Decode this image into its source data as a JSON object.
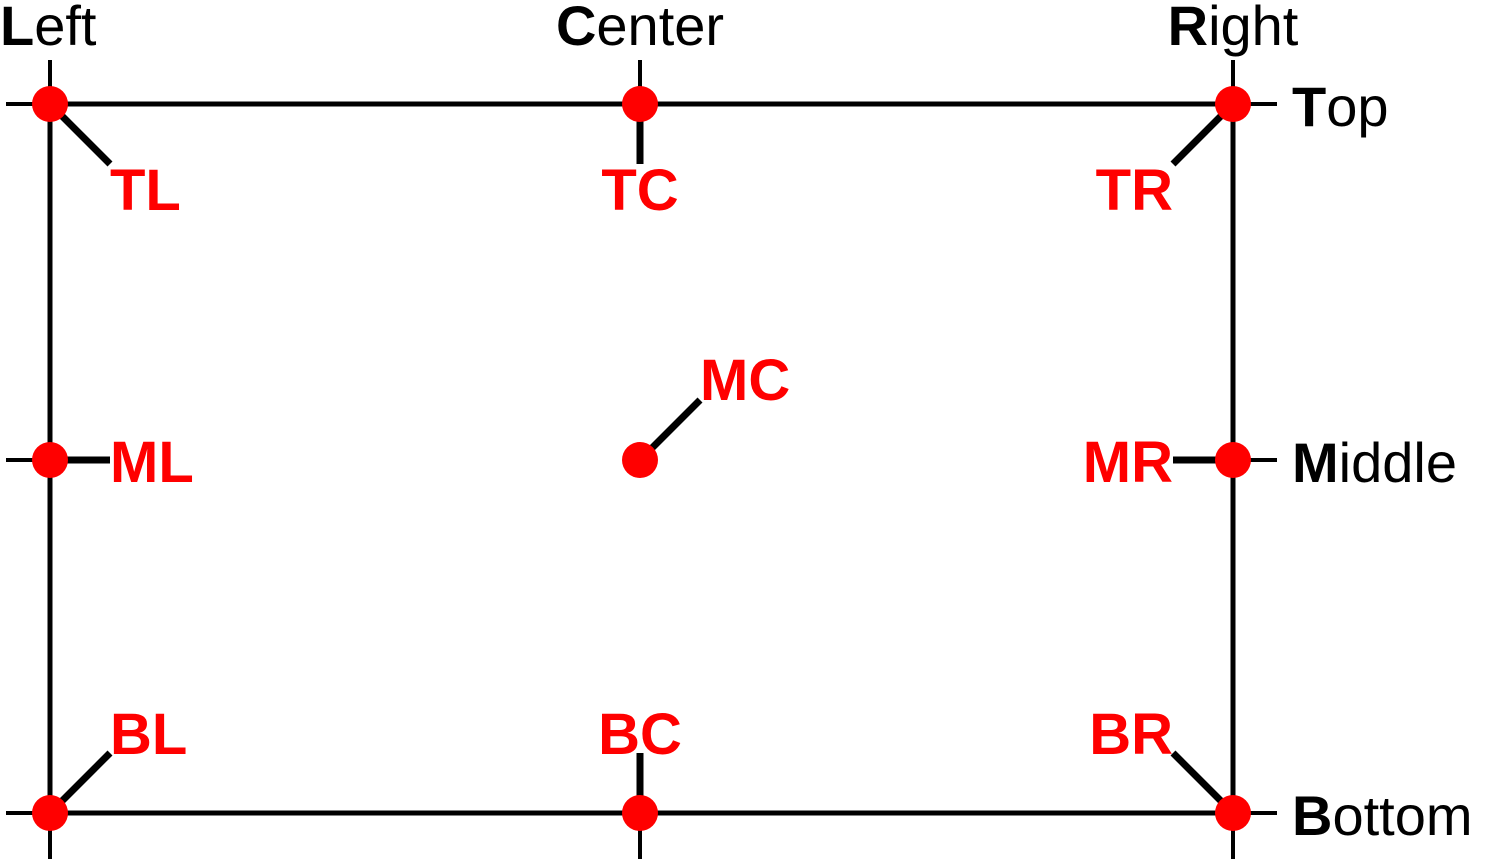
{
  "colors": {
    "frame": "#000000",
    "point": "#ff0000",
    "text": "#000000",
    "code": "#ff0000"
  },
  "columns": [
    {
      "initial": "L",
      "rest": "eft"
    },
    {
      "initial": "C",
      "rest": "enter"
    },
    {
      "initial": "R",
      "rest": "ight"
    }
  ],
  "rows": [
    {
      "initial": "T",
      "rest": "op"
    },
    {
      "initial": "M",
      "rest": "iddle"
    },
    {
      "initial": "B",
      "rest": "ottom"
    }
  ],
  "points": [
    {
      "code": "TL",
      "row": 0,
      "col": 0
    },
    {
      "code": "TC",
      "row": 0,
      "col": 1
    },
    {
      "code": "TR",
      "row": 0,
      "col": 2
    },
    {
      "code": "ML",
      "row": 1,
      "col": 0
    },
    {
      "code": "MC",
      "row": 1,
      "col": 1
    },
    {
      "code": "MR",
      "row": 1,
      "col": 2
    },
    {
      "code": "BL",
      "row": 2,
      "col": 0
    },
    {
      "code": "BC",
      "row": 2,
      "col": 1
    },
    {
      "code": "BR",
      "row": 2,
      "col": 2
    }
  ]
}
